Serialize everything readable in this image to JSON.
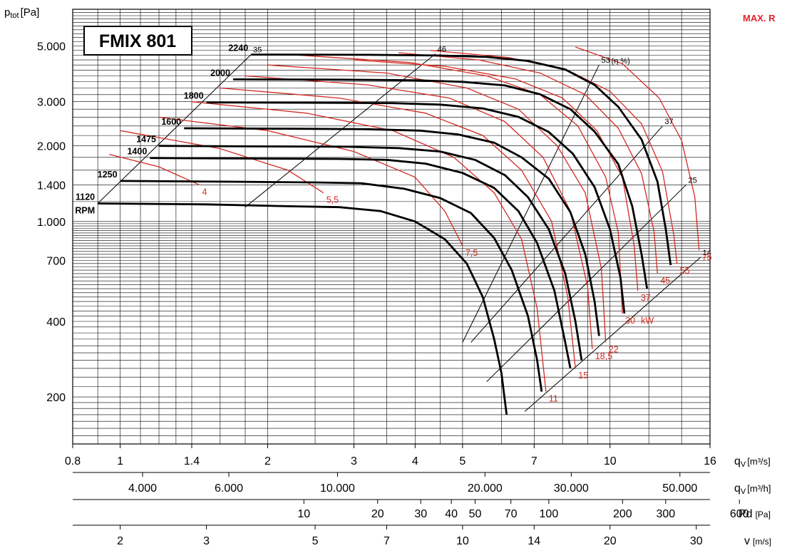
{
  "title": "FMIX 801",
  "corner_label": "MAX. R",
  "colors": {
    "rpm_curve": "#000000",
    "power_curve": "#d42a22",
    "grid": "#000000",
    "title_accent": "#e3242b"
  },
  "axes": {
    "y_label": "p",
    "y_label_sub": "tot",
    "y_label_unit": "[Pa]",
    "x_label": "q",
    "x_label_sub": "V",
    "x_unit_m3s": "[m³/s]",
    "x_unit_m3h": "[m³/h]",
    "pd_label": "Pd",
    "pd_unit": "[Pa]",
    "v_label": "v",
    "v_unit": "[m/s]"
  },
  "chart_data": {
    "type": "line",
    "title": "FMIX 801",
    "x_scale": "log",
    "y_scale": "log",
    "xlim": [
      0.8,
      16
    ],
    "ylim": [
      130,
      7000
    ],
    "y_ticks": [
      {
        "v": 200,
        "label": "200"
      },
      {
        "v": 400,
        "label": "400"
      },
      {
        "v": 700,
        "label": "700"
      },
      {
        "v": 1000,
        "label": "1.000"
      },
      {
        "v": 1400,
        "label": "1.400"
      },
      {
        "v": 2000,
        "label": "2.000"
      },
      {
        "v": 3000,
        "label": "3.000"
      },
      {
        "v": 5000,
        "label": "5.000"
      }
    ],
    "x_ticks_m3s": [
      {
        "v": 0.8,
        "label": "0.8"
      },
      {
        "v": 1,
        "label": "1"
      },
      {
        "v": 1.4,
        "label": "1.4"
      },
      {
        "v": 2,
        "label": "2"
      },
      {
        "v": 3,
        "label": "3"
      },
      {
        "v": 4,
        "label": "4"
      },
      {
        "v": 5,
        "label": "5"
      },
      {
        "v": 7,
        "label": "7"
      },
      {
        "v": 10,
        "label": "10"
      },
      {
        "v": 16,
        "label": "16"
      }
    ],
    "x_ticks_m3h": [
      {
        "v": 4000,
        "label": "4.000"
      },
      {
        "v": 6000,
        "label": "6.000"
      },
      {
        "v": 10000,
        "label": "10.000"
      },
      {
        "v": 20000,
        "label": "20.000"
      },
      {
        "v": 30000,
        "label": "30.000"
      },
      {
        "v": 50000,
        "label": "50.000"
      }
    ],
    "pd_ticks": [
      {
        "v": 10,
        "label": "10"
      },
      {
        "v": 20,
        "label": "20"
      },
      {
        "v": 30,
        "label": "30"
      },
      {
        "v": 40,
        "label": "40"
      },
      {
        "v": 50,
        "label": "50"
      },
      {
        "v": 70,
        "label": "70"
      },
      {
        "v": 100,
        "label": "100"
      },
      {
        "v": 200,
        "label": "200"
      },
      {
        "v": 300,
        "label": "300"
      },
      {
        "v": 600,
        "label": "600"
      }
    ],
    "v_ticks": [
      {
        "v": 2,
        "label": "2"
      },
      {
        "v": 3,
        "label": "3"
      },
      {
        "v": 5,
        "label": "5"
      },
      {
        "v": 7,
        "label": "7"
      },
      {
        "v": 10,
        "label": "10"
      },
      {
        "v": 14,
        "label": "14"
      },
      {
        "v": 20,
        "label": "20"
      },
      {
        "v": 30,
        "label": "30"
      }
    ],
    "rpm_unit": "RPM",
    "rpm_curves": [
      {
        "rpm": "1120",
        "points": [
          [
            0.9,
            1180
          ],
          [
            1.5,
            1170
          ],
          [
            2.2,
            1150
          ],
          [
            2.8,
            1140
          ],
          [
            3.4,
            1100
          ],
          [
            4.0,
            1000
          ],
          [
            4.6,
            850
          ],
          [
            5.1,
            680
          ],
          [
            5.5,
            500
          ],
          [
            5.8,
            340
          ],
          [
            6.0,
            250
          ],
          [
            6.15,
            170
          ]
        ]
      },
      {
        "rpm": "1250",
        "points": [
          [
            1.0,
            1450
          ],
          [
            1.7,
            1440
          ],
          [
            2.5,
            1430
          ],
          [
            3.1,
            1420
          ],
          [
            3.8,
            1350
          ],
          [
            4.5,
            1240
          ],
          [
            5.2,
            1080
          ],
          [
            5.8,
            860
          ],
          [
            6.3,
            640
          ],
          [
            6.8,
            420
          ],
          [
            7.1,
            280
          ],
          [
            7.25,
            210
          ]
        ]
      },
      {
        "rpm": "1400",
        "points": [
          [
            1.15,
            1790
          ],
          [
            1.9,
            1780
          ],
          [
            2.8,
            1775
          ],
          [
            3.5,
            1760
          ],
          [
            4.2,
            1700
          ],
          [
            5.0,
            1560
          ],
          [
            5.8,
            1360
          ],
          [
            6.5,
            1100
          ],
          [
            7.1,
            820
          ],
          [
            7.7,
            530
          ],
          [
            8.1,
            330
          ],
          [
            8.3,
            260
          ]
        ]
      },
      {
        "rpm": "1475",
        "points": [
          [
            1.2,
            2000
          ],
          [
            2.0,
            1990
          ],
          [
            2.9,
            1985
          ],
          [
            3.7,
            1960
          ],
          [
            4.5,
            1900
          ],
          [
            5.3,
            1760
          ],
          [
            6.1,
            1530
          ],
          [
            6.8,
            1250
          ],
          [
            7.5,
            930
          ],
          [
            8.1,
            620
          ],
          [
            8.5,
            400
          ],
          [
            8.75,
            280
          ]
        ]
      },
      {
        "rpm": "1600",
        "points": [
          [
            1.35,
            2350
          ],
          [
            2.3,
            2340
          ],
          [
            3.2,
            2330
          ],
          [
            4.1,
            2300
          ],
          [
            4.9,
            2220
          ],
          [
            5.8,
            2060
          ],
          [
            6.6,
            1800
          ],
          [
            7.5,
            1480
          ],
          [
            8.3,
            1090
          ],
          [
            8.9,
            740
          ],
          [
            9.3,
            480
          ],
          [
            9.5,
            350
          ]
        ]
      },
      {
        "rpm": "1800",
        "points": [
          [
            1.5,
            2980
          ],
          [
            2.6,
            2970
          ],
          [
            3.6,
            2960
          ],
          [
            4.5,
            2920
          ],
          [
            5.5,
            2820
          ],
          [
            6.5,
            2610
          ],
          [
            7.5,
            2270
          ],
          [
            8.4,
            1860
          ],
          [
            9.3,
            1370
          ],
          [
            10.0,
            930
          ],
          [
            10.5,
            600
          ],
          [
            10.7,
            430
          ]
        ]
      },
      {
        "rpm": "2000",
        "points": [
          [
            1.7,
            3680
          ],
          [
            2.8,
            3670
          ],
          [
            4.0,
            3650
          ],
          [
            5.0,
            3600
          ],
          [
            6.1,
            3480
          ],
          [
            7.2,
            3210
          ],
          [
            8.3,
            2800
          ],
          [
            9.3,
            2280
          ],
          [
            10.4,
            1690
          ],
          [
            11.1,
            1150
          ],
          [
            11.6,
            740
          ],
          [
            11.9,
            540
          ]
        ]
      },
      {
        "rpm": "2240",
        "points": [
          [
            1.85,
            4620
          ],
          [
            3.2,
            4610
          ],
          [
            4.5,
            4580
          ],
          [
            5.6,
            4520
          ],
          [
            6.8,
            4360
          ],
          [
            8.1,
            4030
          ],
          [
            9.3,
            3500
          ],
          [
            10.4,
            2860
          ],
          [
            11.6,
            2120
          ],
          [
            12.5,
            1440
          ],
          [
            13.0,
            930
          ],
          [
            13.3,
            670
          ]
        ]
      }
    ],
    "power_unit": "kW",
    "power_curves": [
      {
        "label": "4",
        "points": [
          [
            0.95,
            1850
          ],
          [
            1.2,
            1650
          ],
          [
            1.45,
            1400
          ]
        ]
      },
      {
        "label": "5,5",
        "points": [
          [
            1.0,
            2300
          ],
          [
            1.6,
            1950
          ],
          [
            2.2,
            1600
          ],
          [
            2.6,
            1300
          ]
        ]
      },
      {
        "label": "7,5",
        "points": [
          [
            1.2,
            2600
          ],
          [
            2.0,
            2300
          ],
          [
            3.0,
            1900
          ],
          [
            4.0,
            1500
          ],
          [
            4.6,
            1100
          ],
          [
            5.0,
            800
          ]
        ]
      },
      {
        "label": "11",
        "points": [
          [
            1.4,
            3000
          ],
          [
            2.4,
            2700
          ],
          [
            3.6,
            2300
          ],
          [
            4.8,
            1800
          ],
          [
            5.8,
            1300
          ],
          [
            6.6,
            850
          ],
          [
            7.1,
            450
          ],
          [
            7.4,
            210
          ]
        ]
      },
      {
        "label": "15",
        "points": [
          [
            1.6,
            3400
          ],
          [
            2.8,
            3100
          ],
          [
            4.2,
            2700
          ],
          [
            5.5,
            2200
          ],
          [
            6.6,
            1600
          ],
          [
            7.6,
            1000
          ],
          [
            8.2,
            500
          ],
          [
            8.5,
            260
          ]
        ]
      },
      {
        "label": "18,5",
        "points": [
          [
            1.8,
            3800
          ],
          [
            3.2,
            3500
          ],
          [
            4.7,
            3100
          ],
          [
            6.1,
            2500
          ],
          [
            7.3,
            1800
          ],
          [
            8.3,
            1100
          ],
          [
            9.0,
            550
          ],
          [
            9.2,
            310
          ]
        ]
      },
      {
        "label": "22",
        "points": [
          [
            2.0,
            4200
          ],
          [
            3.5,
            3900
          ],
          [
            5.1,
            3400
          ],
          [
            6.5,
            2800
          ],
          [
            7.8,
            2000
          ],
          [
            8.9,
            1300
          ],
          [
            9.6,
            650
          ],
          [
            9.8,
            330
          ]
        ]
      },
      {
        "label": "30",
        "points": [
          [
            2.3,
            4600
          ],
          [
            3.9,
            4300
          ],
          [
            5.6,
            3800
          ],
          [
            7.2,
            3200
          ],
          [
            8.6,
            2400
          ],
          [
            9.8,
            1500
          ],
          [
            10.4,
            900
          ],
          [
            10.6,
            430
          ]
        ]
      },
      {
        "label": "37",
        "points": [
          [
            3.0,
            4400
          ],
          [
            4.6,
            4150
          ],
          [
            6.4,
            3700
          ],
          [
            8.0,
            3100
          ],
          [
            9.4,
            2300
          ],
          [
            10.6,
            1500
          ],
          [
            11.2,
            800
          ],
          [
            11.4,
            530
          ]
        ]
      },
      {
        "label": "45",
        "points": [
          [
            3.7,
            4700
          ],
          [
            5.4,
            4400
          ],
          [
            7.2,
            3900
          ],
          [
            8.9,
            3200
          ],
          [
            10.4,
            2350
          ],
          [
            11.6,
            1550
          ],
          [
            12.3,
            910
          ],
          [
            12.5,
            620
          ]
        ]
      },
      {
        "label": "55",
        "points": [
          [
            4.3,
            4800
          ],
          [
            6.2,
            4500
          ],
          [
            8.2,
            4000
          ],
          [
            10.0,
            3300
          ],
          [
            11.6,
            2450
          ],
          [
            12.8,
            1580
          ],
          [
            13.5,
            880
          ],
          [
            13.7,
            680
          ]
        ]
      },
      {
        "label": "75",
        "points": [
          [
            8.5,
            4950
          ],
          [
            10.6,
            4250
          ],
          [
            12.6,
            3100
          ],
          [
            14.0,
            2100
          ],
          [
            14.9,
            1250
          ],
          [
            15.2,
            770
          ]
        ]
      }
    ],
    "efficiency_unit": "(η %)",
    "efficiency_lines": [
      {
        "label": "35",
        "points": [
          [
            0.9,
            1180
          ],
          [
            1.85,
            4620
          ]
        ]
      },
      {
        "label": "46",
        "points": [
          [
            1.8,
            1140
          ],
          [
            4.4,
            4650
          ]
        ]
      },
      {
        "label": "53",
        "points": [
          [
            5.0,
            330
          ],
          [
            9.5,
            4200
          ]
        ]
      },
      {
        "label": "37",
        "points": [
          [
            5.2,
            330
          ],
          [
            12.8,
            2400
          ]
        ]
      },
      {
        "label": "25",
        "points": [
          [
            5.6,
            230
          ],
          [
            14.3,
            1400
          ]
        ]
      },
      {
        "label": "14",
        "points": [
          [
            6.7,
            175
          ],
          [
            15.3,
            720
          ]
        ]
      }
    ]
  }
}
